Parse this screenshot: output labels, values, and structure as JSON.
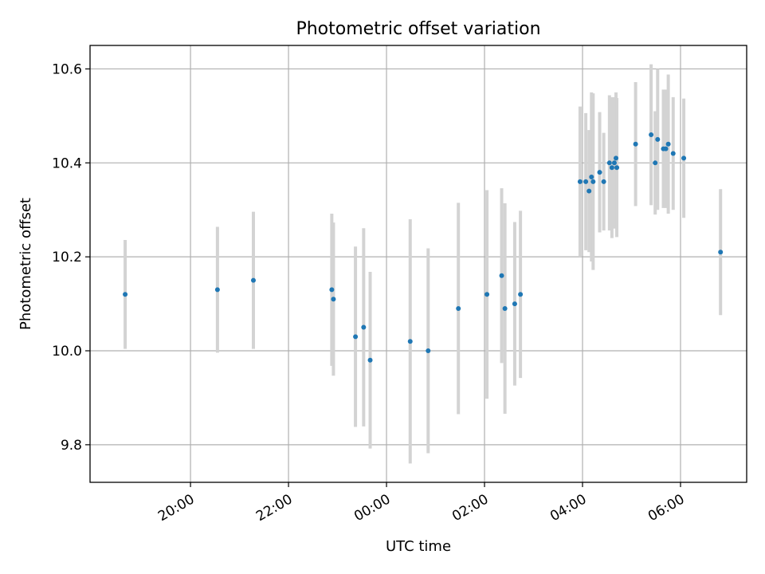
{
  "chart_data": {
    "type": "scatter",
    "title": "Photometric offset variation",
    "xlabel": "UTC time",
    "ylabel": "Photometric offset",
    "x_tick_labels": [
      "20:00",
      "22:00",
      "00:00",
      "02:00",
      "04:00",
      "06:00"
    ],
    "y_tick_labels": [
      "9.8",
      "10.0",
      "10.2",
      "10.4",
      "10.6"
    ],
    "x_ticks_hours": [
      20,
      22,
      24,
      26,
      28,
      30
    ],
    "y_ticks": [
      9.8,
      10.0,
      10.2,
      10.4,
      10.6
    ],
    "xlim_hours": [
      17.95,
      31.35
    ],
    "ylim": [
      9.72,
      10.65
    ],
    "grid": true,
    "colors": {
      "point": "#1f77b4",
      "errorbar": "#d3d3d3",
      "grid": "#b0b0b0"
    },
    "points": [
      {
        "x": "18:40",
        "y": 10.12,
        "err": 0.116
      },
      {
        "x": "20:33",
        "y": 10.13,
        "err": 0.134
      },
      {
        "x": "21:17",
        "y": 10.15,
        "err": 0.146
      },
      {
        "x": "22:53",
        "y": 10.13,
        "err": 0.162
      },
      {
        "x": "22:55",
        "y": 10.11,
        "err": 0.163
      },
      {
        "x": "23:22",
        "y": 10.03,
        "err": 0.192
      },
      {
        "x": "23:32",
        "y": 10.05,
        "err": 0.211
      },
      {
        "x": "23:40",
        "y": 9.98,
        "err": 0.188
      },
      {
        "x": "00:29",
        "y": 10.02,
        "err": 0.26
      },
      {
        "x": "00:51",
        "y": 10.0,
        "err": 0.218
      },
      {
        "x": "01:28",
        "y": 10.09,
        "err": 0.225
      },
      {
        "x": "02:03",
        "y": 10.12,
        "err": 0.222
      },
      {
        "x": "02:21",
        "y": 10.16,
        "err": 0.186
      },
      {
        "x": "02:25",
        "y": 10.09,
        "err": 0.224
      },
      {
        "x": "02:37",
        "y": 10.1,
        "err": 0.174
      },
      {
        "x": "02:44",
        "y": 10.12,
        "err": 0.178
      },
      {
        "x": "03:57",
        "y": 10.36,
        "err": 0.16
      },
      {
        "x": "04:04",
        "y": 10.36,
        "err": 0.146
      },
      {
        "x": "04:08",
        "y": 10.34,
        "err": 0.13
      },
      {
        "x": "04:11",
        "y": 10.37,
        "err": 0.18
      },
      {
        "x": "04:13",
        "y": 10.36,
        "err": 0.188
      },
      {
        "x": "04:21",
        "y": 10.38,
        "err": 0.128
      },
      {
        "x": "04:26",
        "y": 10.36,
        "err": 0.104
      },
      {
        "x": "04:33",
        "y": 10.4,
        "err": 0.144
      },
      {
        "x": "04:36",
        "y": 10.39,
        "err": 0.15
      },
      {
        "x": "04:39",
        "y": 10.4,
        "err": 0.14
      },
      {
        "x": "04:41",
        "y": 10.41,
        "err": 0.14
      },
      {
        "x": "04:42",
        "y": 10.39,
        "err": 0.148
      },
      {
        "x": "05:05",
        "y": 10.44,
        "err": 0.132
      },
      {
        "x": "05:24",
        "y": 10.46,
        "err": 0.15
      },
      {
        "x": "05:29",
        "y": 10.4,
        "err": 0.11
      },
      {
        "x": "05:32",
        "y": 10.45,
        "err": 0.15
      },
      {
        "x": "05:39",
        "y": 10.43,
        "err": 0.126
      },
      {
        "x": "05:42",
        "y": 10.43,
        "err": 0.126
      },
      {
        "x": "05:45",
        "y": 10.44,
        "err": 0.148
      },
      {
        "x": "05:51",
        "y": 10.42,
        "err": 0.12
      },
      {
        "x": "06:04",
        "y": 10.41,
        "err": 0.127
      },
      {
        "x": "06:49",
        "y": 10.21,
        "err": 0.134
      }
    ]
  }
}
